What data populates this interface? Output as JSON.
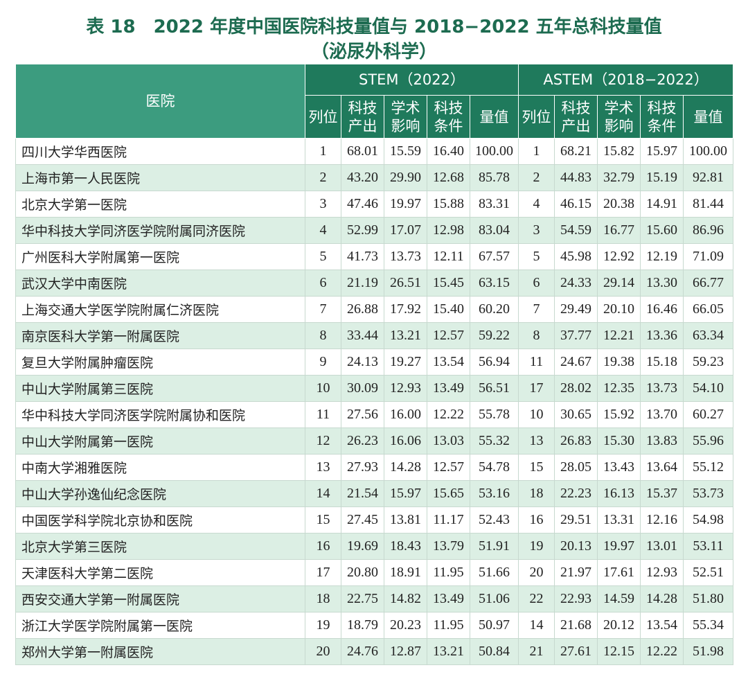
{
  "header": {
    "title": "表 18　2022 年度中国医院科技量值与 2018−2022 五年总科技量值",
    "subtitle": "（泌尿外科学）"
  },
  "table": {
    "first_column": "医院",
    "groups": [
      {
        "title": "STEM（2022）",
        "columns": [
          [
            "列位"
          ],
          [
            "科技",
            "产出"
          ],
          [
            "学术",
            "影响"
          ],
          [
            "科技",
            "条件"
          ],
          [
            "量值"
          ]
        ]
      },
      {
        "title": "ASTEM（2018−2022）",
        "columns": [
          [
            "列位"
          ],
          [
            "科技",
            "产出"
          ],
          [
            "学术",
            "影响"
          ],
          [
            "科技",
            "条件"
          ],
          [
            "量值"
          ]
        ]
      }
    ],
    "rows": [
      [
        "四川大学华西医院",
        "1",
        "68.01",
        "15.59",
        "16.40",
        "100.00",
        "1",
        "68.21",
        "15.82",
        "15.97",
        "100.00"
      ],
      [
        "上海市第一人民医院",
        "2",
        "43.20",
        "29.90",
        "12.68",
        "85.78",
        "2",
        "44.83",
        "32.79",
        "15.19",
        "92.81"
      ],
      [
        "北京大学第一医院",
        "3",
        "47.46",
        "19.97",
        "15.88",
        "83.31",
        "4",
        "46.15",
        "20.38",
        "14.91",
        "81.44"
      ],
      [
        "华中科技大学同济医学院附属同济医院",
        "4",
        "52.99",
        "17.07",
        "12.98",
        "83.04",
        "3",
        "54.59",
        "16.77",
        "15.60",
        "86.96"
      ],
      [
        "广州医科大学附属第一医院",
        "5",
        "41.73",
        "13.73",
        "12.11",
        "67.57",
        "5",
        "45.98",
        "12.92",
        "12.19",
        "71.09"
      ],
      [
        "武汉大学中南医院",
        "6",
        "21.19",
        "26.51",
        "15.45",
        "63.15",
        "6",
        "24.33",
        "29.14",
        "13.30",
        "66.77"
      ],
      [
        "上海交通大学医学院附属仁济医院",
        "7",
        "26.88",
        "17.92",
        "15.40",
        "60.20",
        "7",
        "29.49",
        "20.10",
        "16.46",
        "66.05"
      ],
      [
        "南京医科大学第一附属医院",
        "8",
        "33.44",
        "13.21",
        "12.57",
        "59.22",
        "8",
        "37.77",
        "12.21",
        "13.36",
        "63.34"
      ],
      [
        "复旦大学附属肿瘤医院",
        "9",
        "24.13",
        "19.27",
        "13.54",
        "56.94",
        "11",
        "24.67",
        "19.38",
        "15.18",
        "59.23"
      ],
      [
        "中山大学附属第三医院",
        "10",
        "30.09",
        "12.93",
        "13.49",
        "56.51",
        "17",
        "28.02",
        "12.35",
        "13.73",
        "54.10"
      ],
      [
        "华中科技大学同济医学院附属协和医院",
        "11",
        "27.56",
        "16.00",
        "12.22",
        "55.78",
        "10",
        "30.65",
        "15.92",
        "13.70",
        "60.27"
      ],
      [
        "中山大学附属第一医院",
        "12",
        "26.23",
        "16.06",
        "13.03",
        "55.32",
        "13",
        "26.83",
        "15.30",
        "13.83",
        "55.96"
      ],
      [
        "中南大学湘雅医院",
        "13",
        "27.93",
        "14.28",
        "12.57",
        "54.78",
        "15",
        "28.05",
        "13.43",
        "13.64",
        "55.12"
      ],
      [
        "中山大学孙逸仙纪念医院",
        "14",
        "21.54",
        "15.97",
        "15.65",
        "53.16",
        "18",
        "22.23",
        "16.13",
        "15.37",
        "53.73"
      ],
      [
        "中国医学科学院北京协和医院",
        "15",
        "27.45",
        "13.81",
        "11.17",
        "52.43",
        "16",
        "29.51",
        "13.31",
        "12.16",
        "54.98"
      ],
      [
        "北京大学第三医院",
        "16",
        "19.69",
        "18.43",
        "13.79",
        "51.91",
        "19",
        "20.13",
        "19.97",
        "13.01",
        "53.11"
      ],
      [
        "天津医科大学第二医院",
        "17",
        "20.80",
        "18.91",
        "11.95",
        "51.66",
        "20",
        "21.97",
        "17.61",
        "12.93",
        "52.51"
      ],
      [
        "西安交通大学第一附属医院",
        "18",
        "22.75",
        "14.82",
        "13.49",
        "51.06",
        "22",
        "22.93",
        "14.59",
        "14.28",
        "51.80"
      ],
      [
        "浙江大学医学院附属第一医院",
        "19",
        "18.79",
        "20.23",
        "11.95",
        "50.97",
        "14",
        "21.68",
        "20.12",
        "13.54",
        "55.34"
      ],
      [
        "郑州大学第一附属医院",
        "20",
        "24.76",
        "12.87",
        "13.21",
        "50.84",
        "21",
        "27.61",
        "12.15",
        "12.22",
        "51.98"
      ]
    ]
  }
}
